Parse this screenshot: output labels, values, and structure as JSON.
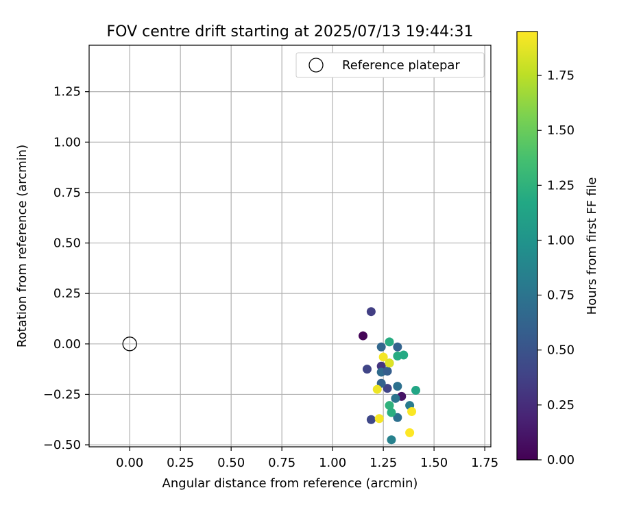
{
  "chart_data": {
    "type": "scatter",
    "title": "FOV centre drift starting at 2025/07/13 19:44:31",
    "xlabel": "Angular distance from reference (arcmin)",
    "ylabel": "Rotation from reference (arcmin)",
    "xlim": [
      -0.2,
      1.78
    ],
    "ylim": [
      -0.51,
      1.48
    ],
    "xticks": [
      "0.00",
      "0.25",
      "0.50",
      "0.75",
      "1.00",
      "1.25",
      "1.50",
      "1.75"
    ],
    "yticks": [
      "−0.50",
      "−0.25",
      "0.00",
      "0.25",
      "0.50",
      "0.75",
      "1.00",
      "1.25"
    ],
    "grid": true,
    "legend": {
      "placement": "top-right",
      "entries": [
        "Reference platepar"
      ]
    },
    "reference": {
      "x": 0.0,
      "y": 0.0,
      "marker": "open-circle"
    },
    "colorbar": {
      "label": "Hours from first FF file",
      "colormap": "viridis",
      "range": [
        0,
        1.95
      ],
      "ticks": [
        "0.00",
        "0.25",
        "0.50",
        "0.75",
        "1.00",
        "1.25",
        "1.50",
        "1.75"
      ]
    },
    "points": [
      {
        "x": 1.15,
        "y": 0.04,
        "t": 0.02
      },
      {
        "x": 1.19,
        "y": 0.16,
        "t": 0.36
      },
      {
        "x": 1.17,
        "y": -0.125,
        "t": 0.4
      },
      {
        "x": 1.19,
        "y": -0.375,
        "t": 0.42
      },
      {
        "x": 1.34,
        "y": -0.26,
        "t": 0.1
      },
      {
        "x": 1.24,
        "y": -0.11,
        "t": 0.3
      },
      {
        "x": 1.27,
        "y": -0.22,
        "t": 0.4
      },
      {
        "x": 1.24,
        "y": -0.015,
        "t": 0.65
      },
      {
        "x": 1.24,
        "y": -0.14,
        "t": 0.68
      },
      {
        "x": 1.24,
        "y": -0.195,
        "t": 0.62
      },
      {
        "x": 1.27,
        "y": -0.135,
        "t": 0.58
      },
      {
        "x": 1.28,
        "y": -0.095,
        "t": 0.65
      },
      {
        "x": 1.32,
        "y": -0.015,
        "t": 0.62
      },
      {
        "x": 1.32,
        "y": -0.21,
        "t": 0.72
      },
      {
        "x": 1.31,
        "y": -0.27,
        "t": 0.75
      },
      {
        "x": 1.32,
        "y": -0.365,
        "t": 0.72
      },
      {
        "x": 1.38,
        "y": -0.305,
        "t": 0.8
      },
      {
        "x": 1.29,
        "y": -0.475,
        "t": 0.85
      },
      {
        "x": 1.28,
        "y": 0.01,
        "t": 1.2
      },
      {
        "x": 1.32,
        "y": -0.06,
        "t": 1.2
      },
      {
        "x": 1.35,
        "y": -0.055,
        "t": 1.18
      },
      {
        "x": 1.41,
        "y": -0.23,
        "t": 1.15
      },
      {
        "x": 1.28,
        "y": -0.305,
        "t": 1.25
      },
      {
        "x": 1.29,
        "y": -0.34,
        "t": 1.22
      },
      {
        "x": 1.25,
        "y": -0.065,
        "t": 1.92
      },
      {
        "x": 1.28,
        "y": -0.095,
        "t": 1.85
      },
      {
        "x": 1.22,
        "y": -0.225,
        "t": 1.9
      },
      {
        "x": 1.23,
        "y": -0.37,
        "t": 1.93
      },
      {
        "x": 1.39,
        "y": -0.335,
        "t": 1.94
      },
      {
        "x": 1.38,
        "y": -0.44,
        "t": 1.95
      }
    ]
  }
}
